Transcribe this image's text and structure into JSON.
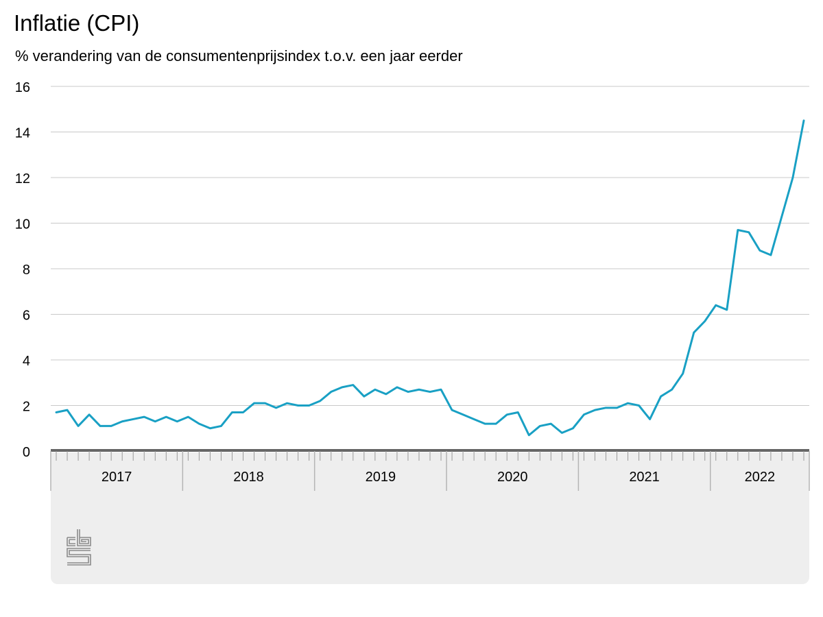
{
  "title": "Inflatie (CPI)",
  "subtitle": "% verandering van de consumentenprijsindex t.o.v. een jaar eerder",
  "colors": {
    "line": "#19a0c4",
    "grid": "#c8c8c8",
    "axis": "#666666",
    "footer": "#eeeeee",
    "logo": "#8a8a8a"
  },
  "logo": "cbs-logo",
  "chart_data": {
    "type": "line",
    "title": "Inflatie (CPI)",
    "subtitle": "% verandering van de consumentenprijsindex t.o.v. een jaar eerder",
    "xlabel": "",
    "ylabel": "",
    "ylim": [
      0,
      16
    ],
    "yticks": [
      0,
      2,
      4,
      6,
      8,
      10,
      12,
      14,
      16
    ],
    "grid": true,
    "x_start": "2017-01",
    "x_end": "2022-09",
    "year_labels": [
      "2017",
      "2018",
      "2019",
      "2020",
      "2021",
      "2022"
    ],
    "series": [
      {
        "values": [
          1.7,
          1.8,
          1.1,
          1.6,
          1.1,
          1.1,
          1.3,
          1.4,
          1.5,
          1.3,
          1.5,
          1.3,
          1.5,
          1.2,
          1.0,
          1.1,
          1.7,
          1.7,
          2.1,
          2.1,
          1.9,
          2.1,
          2.0,
          2.0,
          2.2,
          2.6,
          2.8,
          2.9,
          2.4,
          2.7,
          2.5,
          2.8,
          2.6,
          2.7,
          2.6,
          2.7,
          1.8,
          1.6,
          1.4,
          1.2,
          1.2,
          1.6,
          1.7,
          0.7,
          1.1,
          1.2,
          0.8,
          1.0,
          1.6,
          1.8,
          1.9,
          1.9,
          2.1,
          2.0,
          1.4,
          2.4,
          2.7,
          3.4,
          5.2,
          5.7,
          6.4,
          6.2,
          9.7,
          9.6,
          8.8,
          8.6,
          10.3,
          12.0,
          14.5
        ]
      }
    ]
  }
}
